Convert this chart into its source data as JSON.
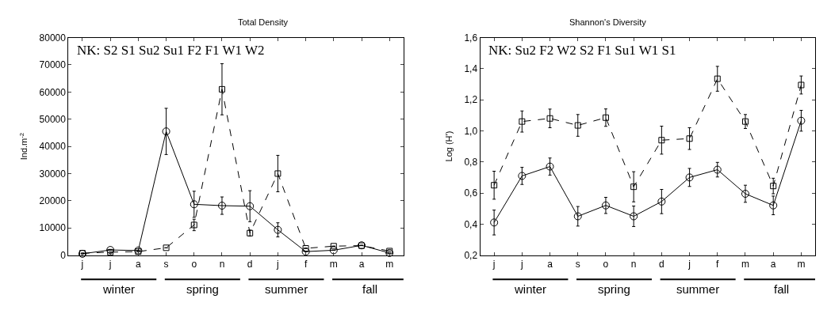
{
  "chart_data": [
    {
      "type": "line",
      "title": "Total Density",
      "ylabel": "Ind.m$^{-2}$",
      "categories": [
        "j",
        "j",
        "a",
        "s",
        "o",
        "n",
        "d",
        "j",
        "f",
        "m",
        "a",
        "m"
      ],
      "series": [
        {
          "color": "#000000",
          "marker": "circle",
          "line_style": "solid",
          "values": [
            500,
            1900,
            1700,
            45500,
            18700,
            18200,
            18000,
            9300,
            1300,
            1800,
            3600,
            800
          ],
          "errors": [
            null,
            null,
            null,
            8500,
            4800,
            3200,
            5700,
            2600,
            null,
            null,
            null,
            null
          ]
        },
        {
          "color": "#000000",
          "marker": "square",
          "line_style": "dashed",
          "values": [
            700,
            1100,
            1300,
            2700,
            11100,
            61000,
            8100,
            30000,
            2500,
            3300,
            3500,
            1500
          ],
          "errors": [
            null,
            null,
            null,
            null,
            2100,
            9400,
            1100,
            6700,
            null,
            null,
            null,
            null
          ]
        }
      ],
      "ylim": [
        0,
        80000
      ],
      "yticks": [
        0,
        10000,
        20000,
        30000,
        40000,
        50000,
        60000,
        70000,
        80000
      ],
      "annotations": [
        "NK: S2 S1 Su2 Su1 F2 F1 W1 W2",
        "winter",
        "spring",
        "summer",
        "fall"
      ]
    },
    {
      "type": "line",
      "title": "Shannon's Diversity",
      "ylabel": "Log (H')",
      "categories": [
        "j",
        "j",
        "a",
        "s",
        "o",
        "n",
        "d",
        "j",
        "f",
        "m",
        "a",
        "m"
      ],
      "series": [
        {
          "color": "#000000",
          "marker": "circle",
          "line_style": "solid",
          "values": [
            0.41,
            0.71,
            0.77,
            0.45,
            0.52,
            0.45,
            0.545,
            0.7,
            0.75,
            0.595,
            0.52,
            1.065
          ],
          "errors": [
            0.08,
            0.055,
            0.055,
            0.063,
            0.052,
            0.066,
            0.078,
            0.058,
            0.047,
            0.055,
            0.06,
            0.067
          ]
        },
        {
          "color": "#000000",
          "marker": "square",
          "line_style": "dashed",
          "values": [
            0.65,
            1.06,
            1.08,
            1.035,
            1.085,
            0.64,
            0.94,
            0.95,
            1.335,
            1.06,
            0.645,
            1.295
          ],
          "errors": [
            0.09,
            0.068,
            0.06,
            0.07,
            0.056,
            0.097,
            0.09,
            0.07,
            0.08,
            0.045,
            0.05,
            0.058
          ]
        }
      ],
      "ylim": [
        0.2,
        1.6
      ],
      "yticks": [
        {
          "value": 0.2,
          "label": "0,2"
        },
        {
          "value": 0.4,
          "label": "0,4"
        },
        {
          "value": 0.6,
          "label": "0,6"
        },
        {
          "value": 0.8,
          "label": "0,8"
        },
        {
          "value": 1.0,
          "label": "1,0"
        },
        {
          "value": 1.2,
          "label": "1,2"
        },
        {
          "value": 1.4,
          "label": "1,4"
        },
        {
          "value": 1.6,
          "label": "1,6"
        }
      ],
      "annotations": [
        "NK: Su2 F2 W2 S2 F1 Su1 W1 S1",
        "winter",
        "spring",
        "summer",
        "fall"
      ]
    }
  ]
}
